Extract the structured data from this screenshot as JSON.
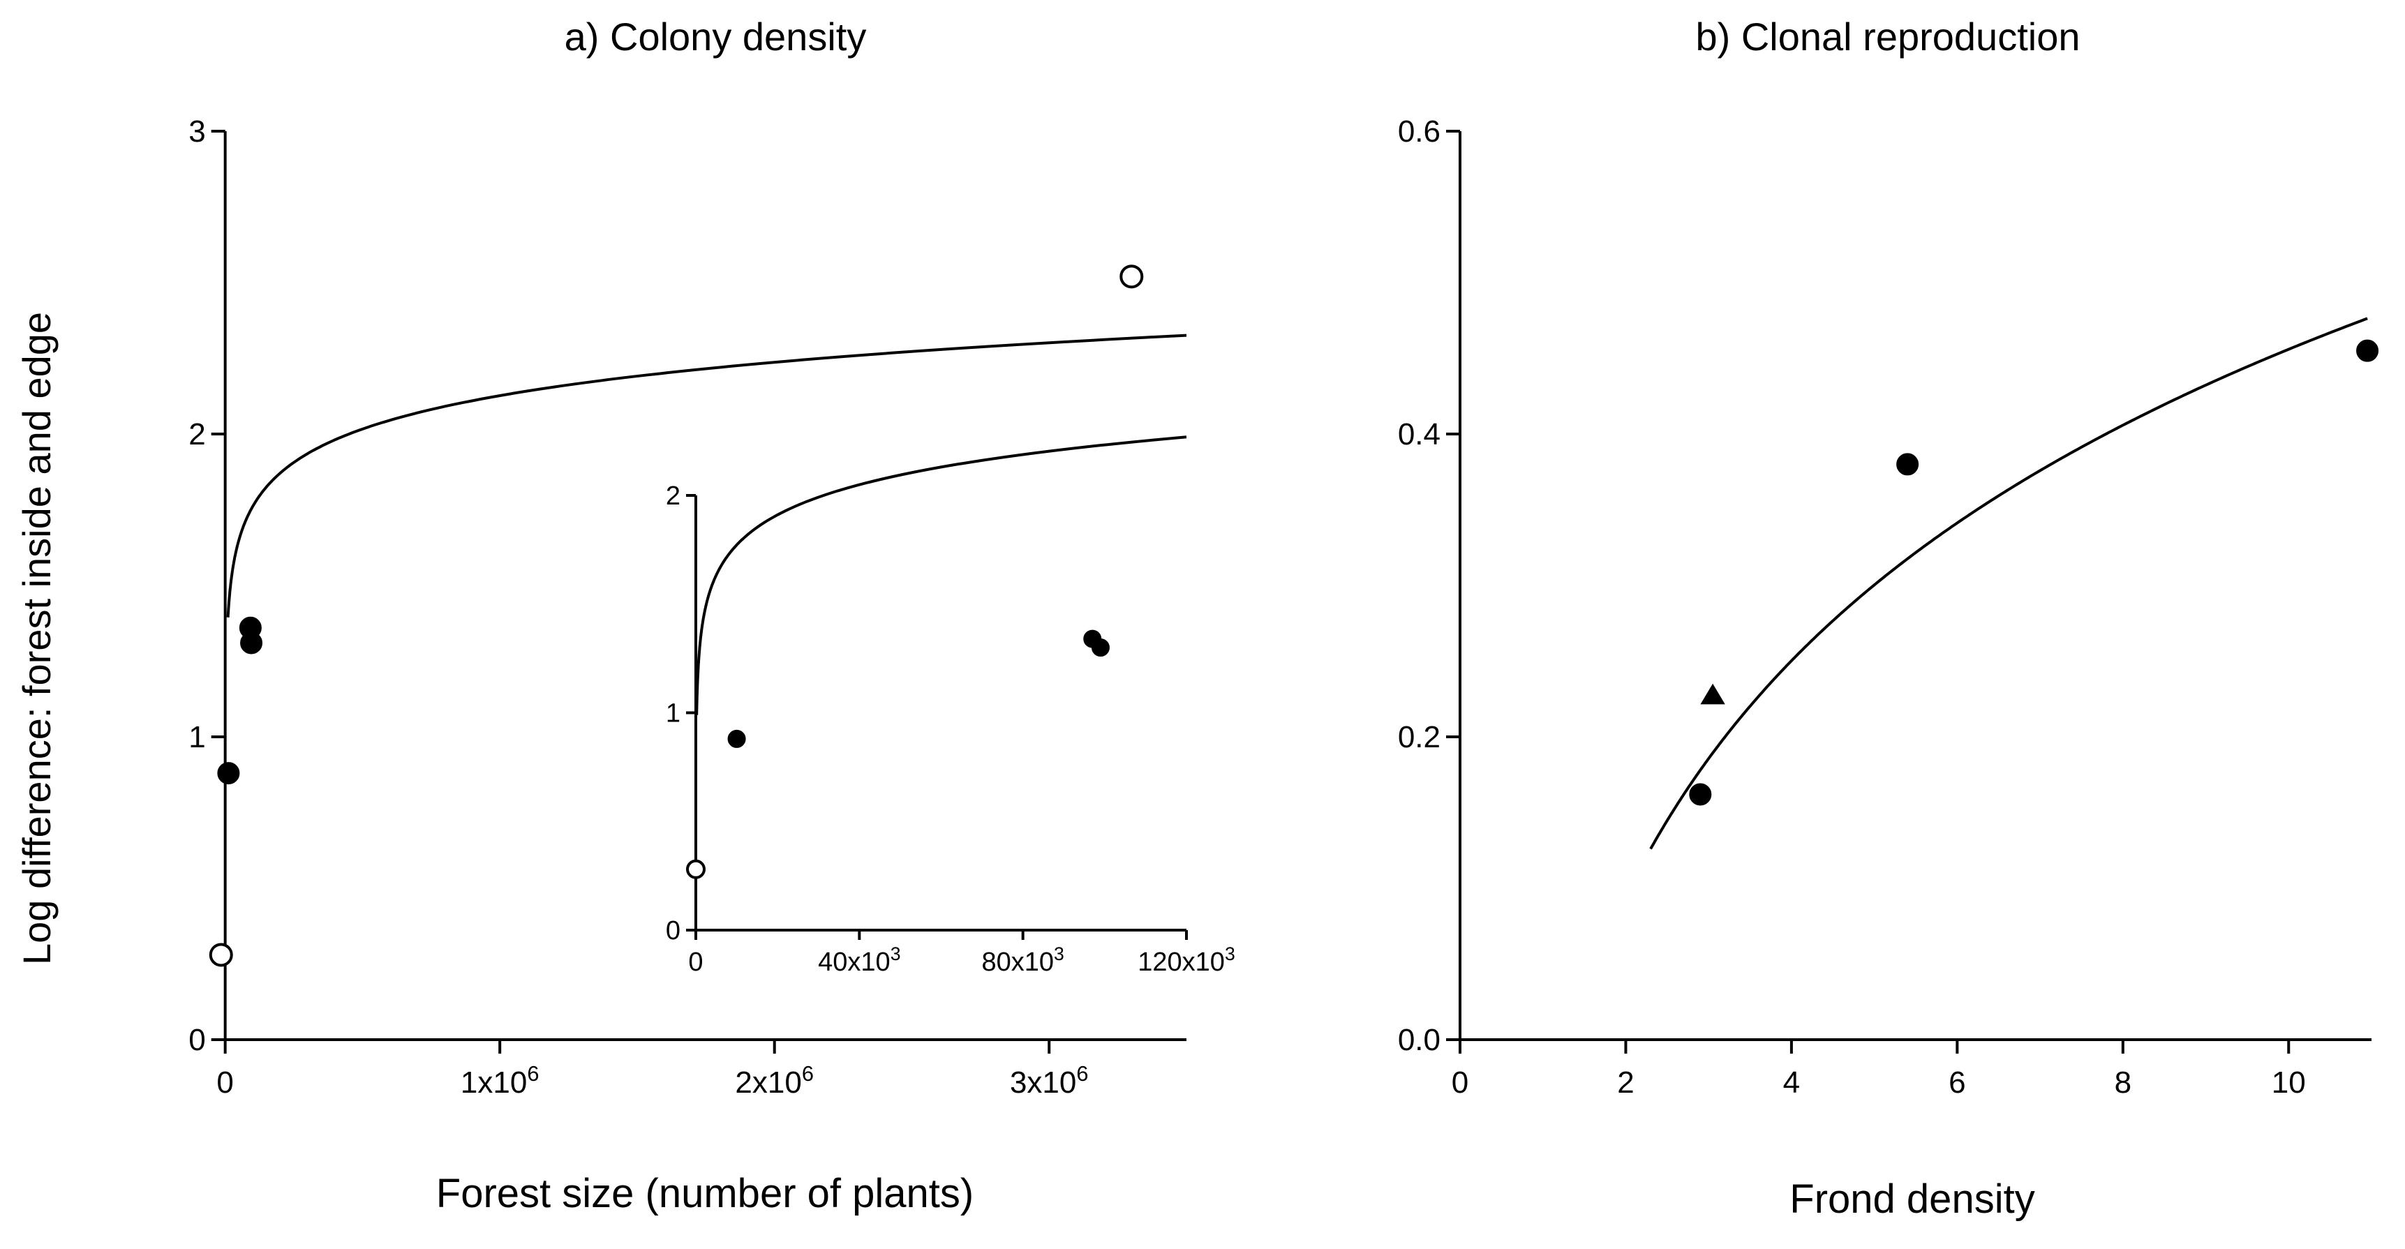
{
  "figure": {
    "ylabel": "Log difference: forest inside and edge"
  },
  "chart_data": [
    {
      "id": "a",
      "type": "scatter",
      "title": "a) Colony density",
      "xlabel": "Forest size (number of plants)",
      "ylabel": "Log difference: forest inside and edge",
      "xlim": [
        -50000,
        3500000
      ],
      "ylim": [
        0,
        3
      ],
      "xticks": [
        {
          "value": 0,
          "label": "0"
        },
        {
          "value": 1000000,
          "label": "1x10",
          "sup": "6"
        },
        {
          "value": 2000000,
          "label": "2x10",
          "sup": "6"
        },
        {
          "value": 3000000,
          "label": "3x10",
          "sup": "6"
        }
      ],
      "yticks": [
        {
          "value": 0,
          "label": "0"
        },
        {
          "value": 1,
          "label": "1"
        },
        {
          "value": 2,
          "label": "2"
        },
        {
          "value": 3,
          "label": "3"
        }
      ],
      "series": [
        {
          "name": "filled",
          "marker": "circle-filled",
          "points": [
            [
              12000,
              0.88
            ],
            [
              95000,
              1.31
            ],
            [
              92000,
              1.36
            ]
          ]
        },
        {
          "name": "open",
          "marker": "circle-open",
          "points": [
            [
              -15000,
              0.28
            ],
            [
              3300000,
              2.52
            ]
          ]
        }
      ],
      "fit": {
        "type": "logarithmic",
        "a": -0.07,
        "b": 0.159,
        "x_range": [
          10000,
          3500000
        ]
      },
      "inset": {
        "xlim": [
          0,
          120000
        ],
        "ylim": [
          0,
          2
        ],
        "xticks": [
          {
            "value": 0,
            "label": "0"
          },
          {
            "value": 40000,
            "label": "40x10",
            "sup": "3"
          },
          {
            "value": 80000,
            "label": "80x10",
            "sup": "3"
          },
          {
            "value": 120000,
            "label": "120x10",
            "sup": "3"
          }
        ],
        "yticks": [
          {
            "value": 0,
            "label": "0"
          },
          {
            "value": 1,
            "label": "1"
          },
          {
            "value": 2,
            "label": "2"
          }
        ],
        "series": [
          {
            "name": "filled",
            "marker": "circle-filled",
            "points": [
              [
                10000,
                0.88
              ],
              [
                97000,
                1.34
              ],
              [
                99000,
                1.3
              ]
            ]
          },
          {
            "name": "open",
            "marker": "circle-open",
            "points": [
              [
                0,
                0.28
              ]
            ]
          }
        ],
        "fit": {
          "type": "logarithmic",
          "a": -0.07,
          "b": 0.2,
          "x_range": [
            200,
            120000
          ]
        }
      }
    },
    {
      "id": "b",
      "type": "scatter",
      "title": "b) Clonal reproduction",
      "xlabel": "Frond density",
      "ylabel": "",
      "xlim": [
        0,
        11
      ],
      "ylim": [
        0,
        0.6
      ],
      "xticks": [
        {
          "value": 0,
          "label": "0"
        },
        {
          "value": 2,
          "label": "2"
        },
        {
          "value": 4,
          "label": "4"
        },
        {
          "value": 6,
          "label": "6"
        },
        {
          "value": 8,
          "label": "8"
        },
        {
          "value": 10,
          "label": "10"
        }
      ],
      "yticks": [
        {
          "value": 0,
          "label": "0.0"
        },
        {
          "value": 0.2,
          "label": "0.2"
        },
        {
          "value": 0.4,
          "label": "0.4"
        },
        {
          "value": 0.6,
          "label": "0.6"
        }
      ],
      "series": [
        {
          "name": "circles",
          "marker": "circle-filled",
          "points": [
            [
              2.9,
              0.162
            ],
            [
              5.4,
              0.38
            ],
            [
              10.95,
              0.455
            ]
          ]
        },
        {
          "name": "triangle",
          "marker": "triangle-filled",
          "points": [
            [
              3.05,
              0.227
            ]
          ]
        }
      ],
      "fit": {
        "type": "logarithmic",
        "a": -0.061,
        "b": 0.2245,
        "x_range": [
          2.3,
          10.95
        ]
      }
    }
  ]
}
